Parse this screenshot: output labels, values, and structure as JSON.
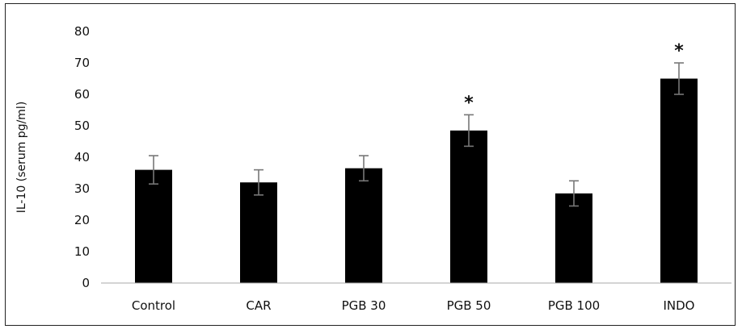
{
  "chart_data": {
    "type": "bar",
    "ylabel": "IL-10 (serum pg/ml)",
    "categories": [
      "Control",
      "CAR",
      "PGB 30",
      "PGB 50",
      "PGB 100",
      "INDO"
    ],
    "values": [
      36,
      32,
      36.5,
      48.5,
      28.5,
      65
    ],
    "error": [
      4.5,
      4,
      4,
      5,
      4,
      5
    ],
    "significance": [
      "",
      "",
      "",
      "*",
      "",
      "*"
    ],
    "ylim": [
      0,
      80
    ],
    "yticks": [
      0,
      10,
      20,
      30,
      40,
      50,
      60,
      70,
      80
    ],
    "grid": false,
    "bar_color": "#000000",
    "error_color": "#777777"
  }
}
